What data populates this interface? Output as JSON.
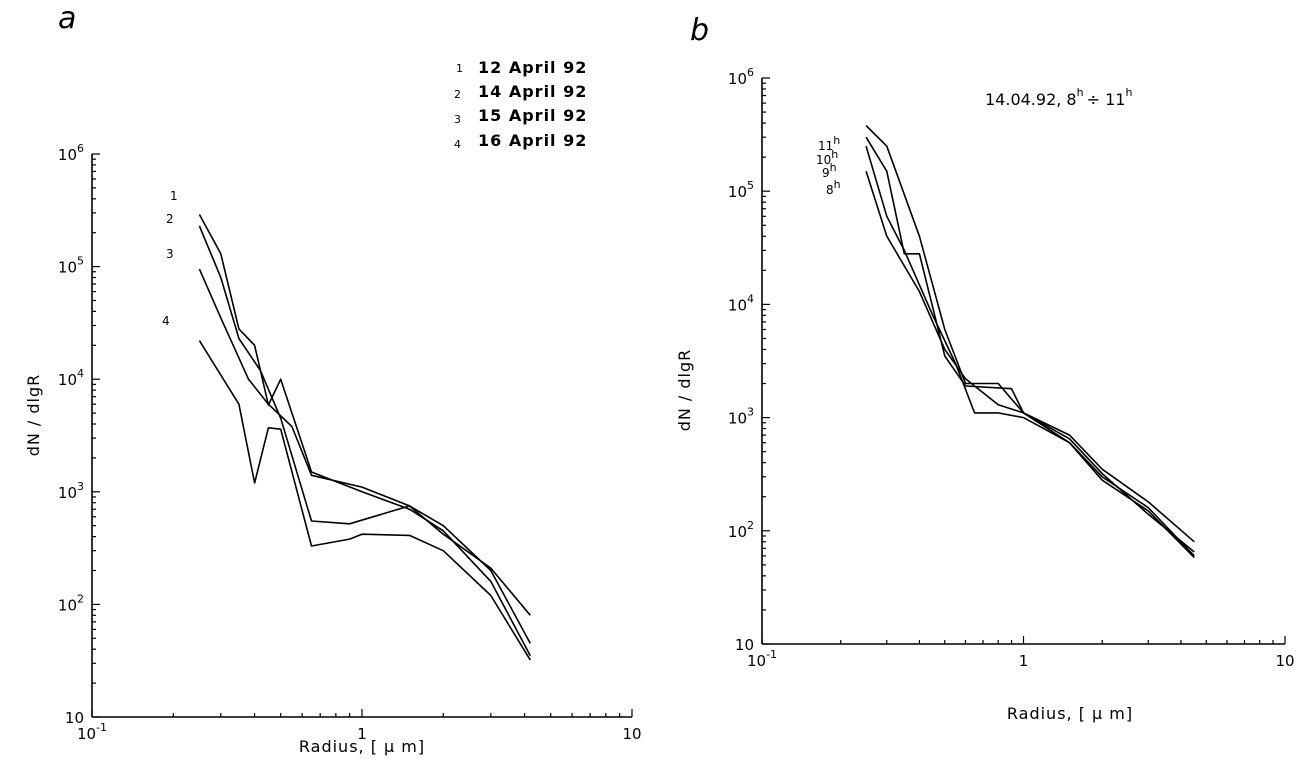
{
  "chart_data": [
    {
      "panel": "a",
      "type": "line",
      "xlabel": "Radius, [ μ m]",
      "ylabel": "dN / dlgR",
      "xscale": "log",
      "yscale": "log",
      "xlim": [
        0.1,
        10
      ],
      "ylim": [
        10,
        1000000
      ],
      "x_ticks": [
        {
          "value": 0.1,
          "base": "10",
          "exp": "-1"
        },
        {
          "value": 1,
          "base": "1",
          "exp": ""
        },
        {
          "value": 10,
          "base": "10",
          "exp": ""
        }
      ],
      "y_ticks": [
        {
          "value": 10,
          "base": "10",
          "exp": ""
        },
        {
          "value": 100,
          "base": "10",
          "exp": "2"
        },
        {
          "value": 1000,
          "base": "10",
          "exp": "3"
        },
        {
          "value": 10000,
          "base": "10",
          "exp": "4"
        },
        {
          "value": 100000,
          "base": "10",
          "exp": "5"
        },
        {
          "value": 1000000,
          "base": "10",
          "exp": "6"
        }
      ],
      "legend": [
        {
          "num": "1",
          "text": "12 April 92"
        },
        {
          "num": "2",
          "text": "14 April 92"
        },
        {
          "num": "3",
          "text": "15 April 92"
        },
        {
          "num": "4",
          "text": "16 April 92"
        }
      ],
      "series": [
        {
          "label": "1",
          "points": [
            [
              0.25,
              290000
            ],
            [
              0.3,
              130000
            ],
            [
              0.35,
              28000
            ],
            [
              0.4,
              20000
            ],
            [
              0.45,
              5900
            ],
            [
              0.5,
              10000
            ],
            [
              0.65,
              1500
            ],
            [
              1.0,
              1000
            ],
            [
              1.5,
              700
            ],
            [
              2.0,
              450
            ],
            [
              3.0,
              160
            ],
            [
              4.2,
              35
            ]
          ]
        },
        {
          "label": "2",
          "points": [
            [
              0.25,
              230000
            ],
            [
              0.3,
              80000
            ],
            [
              0.35,
              23000
            ],
            [
              0.42,
              12000
            ],
            [
              0.5,
              4500
            ],
            [
              0.65,
              550
            ],
            [
              0.9,
              520
            ],
            [
              1.5,
              750
            ],
            [
              2.0,
              500
            ],
            [
              3.0,
              200
            ],
            [
              4.2,
              45
            ]
          ]
        },
        {
          "label": "3",
          "points": [
            [
              0.25,
              95000
            ],
            [
              0.3,
              35000
            ],
            [
              0.38,
              10000
            ],
            [
              0.45,
              6000
            ],
            [
              0.55,
              3800
            ],
            [
              0.65,
              1400
            ],
            [
              1.0,
              1100
            ],
            [
              1.5,
              750
            ],
            [
              2.0,
              420
            ],
            [
              3.0,
              210
            ],
            [
              4.2,
              80
            ]
          ]
        },
        {
          "label": "4",
          "points": [
            [
              0.25,
              22000
            ],
            [
              0.35,
              6000
            ],
            [
              0.4,
              1200
            ],
            [
              0.45,
              3700
            ],
            [
              0.5,
              3600
            ],
            [
              0.65,
              330
            ],
            [
              0.9,
              380
            ],
            [
              1.0,
              420
            ],
            [
              1.5,
              410
            ],
            [
              2.0,
              300
            ],
            [
              3.0,
              120
            ],
            [
              4.2,
              32
            ]
          ]
        }
      ]
    },
    {
      "panel": "b",
      "type": "line",
      "title": "14.04.92, 8h ÷ 11h",
      "xlabel": "Radius, [ μ m]",
      "ylabel": "dN / dlgR",
      "xscale": "log",
      "yscale": "log",
      "xlim": [
        0.1,
        10
      ],
      "ylim": [
        10,
        1000000
      ],
      "x_ticks": [
        {
          "value": 0.1,
          "base": "10",
          "exp": "-1"
        },
        {
          "value": 1,
          "base": "1",
          "exp": ""
        },
        {
          "value": 10,
          "base": "10",
          "exp": ""
        }
      ],
      "y_ticks": [
        {
          "value": 10,
          "base": "10",
          "exp": ""
        },
        {
          "value": 100,
          "base": "10",
          "exp": "2"
        },
        {
          "value": 1000,
          "base": "10",
          "exp": "3"
        },
        {
          "value": 10000,
          "base": "10",
          "exp": "4"
        },
        {
          "value": 100000,
          "base": "10",
          "exp": "5"
        },
        {
          "value": 1000000,
          "base": "10",
          "exp": "6"
        }
      ],
      "series": [
        {
          "label": "11h",
          "points": [
            [
              0.25,
              380000
            ],
            [
              0.3,
              250000
            ],
            [
              0.4,
              40000
            ],
            [
              0.5,
              6000
            ],
            [
              0.6,
              2000
            ],
            [
              0.8,
              2000
            ],
            [
              1.0,
              1100
            ],
            [
              1.5,
              700
            ],
            [
              2.0,
              350
            ],
            [
              3.0,
              180
            ],
            [
              4.5,
              80
            ]
          ]
        },
        {
          "label": "10h",
          "points": [
            [
              0.25,
              300000
            ],
            [
              0.3,
              150000
            ],
            [
              0.35,
              28000
            ],
            [
              0.4,
              28000
            ],
            [
              0.5,
              3500
            ],
            [
              0.6,
              1900
            ],
            [
              0.9,
              1800
            ],
            [
              1.0,
              1100
            ],
            [
              1.5,
              650
            ],
            [
              2.0,
              320
            ],
            [
              3.0,
              140
            ],
            [
              4.5,
              65
            ]
          ]
        },
        {
          "label": "9h",
          "points": [
            [
              0.25,
              250000
            ],
            [
              0.3,
              60000
            ],
            [
              0.35,
              30000
            ],
            [
              0.45,
              8000
            ],
            [
              0.55,
              3000
            ],
            [
              0.65,
              1100
            ],
            [
              0.8,
              1100
            ],
            [
              1.0,
              1000
            ],
            [
              1.5,
              600
            ],
            [
              2.0,
              300
            ],
            [
              3.0,
              160
            ],
            [
              4.5,
              60
            ]
          ]
        },
        {
          "label": "8h",
          "points": [
            [
              0.25,
              150000
            ],
            [
              0.3,
              40000
            ],
            [
              0.4,
              13000
            ],
            [
              0.5,
              4000
            ],
            [
              0.6,
              2200
            ],
            [
              0.8,
              1300
            ],
            [
              1.0,
              1100
            ],
            [
              1.5,
              600
            ],
            [
              2.0,
              280
            ],
            [
              3.0,
              150
            ],
            [
              4.5,
              58
            ]
          ]
        }
      ]
    }
  ],
  "panel_a": {
    "letter": "a",
    "xlabel": "Radius, [ μ m]",
    "ylabel": "dN / dlgR",
    "curve_labels": [
      "1",
      "2",
      "3",
      "4"
    ]
  },
  "panel_b": {
    "letter": "b",
    "title_date": "14.04.92, 8",
    "title_sup1": "h",
    "title_div": "÷ 11",
    "title_sup2": "h",
    "xlabel": "Radius, [ μ m]",
    "ylabel": "dN / dlgR",
    "curve_labels": [
      {
        "base": "11",
        "sup": "h"
      },
      {
        "base": "10",
        "sup": "h"
      },
      {
        "base": "9",
        "sup": "h"
      },
      {
        "base": "8",
        "sup": "h"
      }
    ]
  }
}
